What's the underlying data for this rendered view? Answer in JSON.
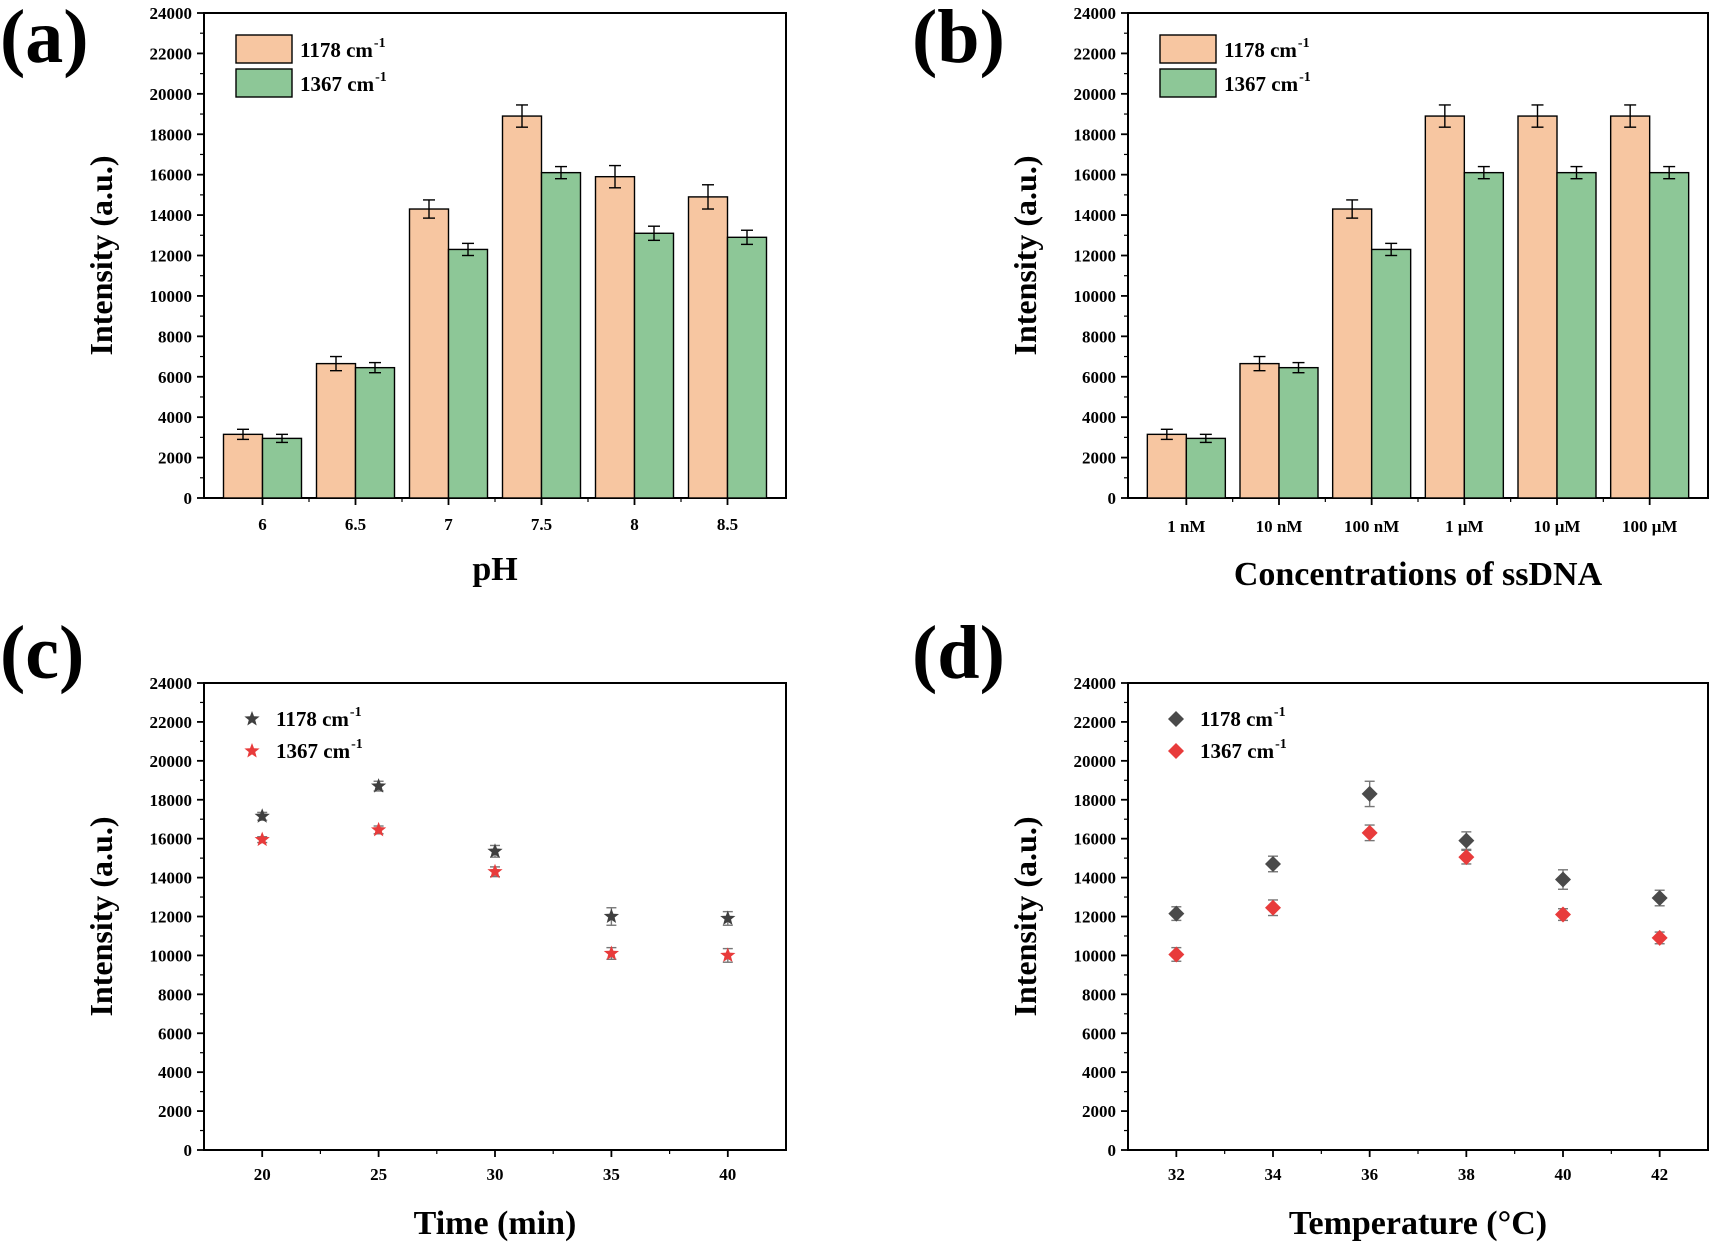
{
  "chart_data": [
    {
      "panel": "(a)",
      "type": "bar",
      "xlabel": "pH",
      "ylabel": "Intensity (a.u.)",
      "ylim": [
        0,
        24000
      ],
      "yticks": [
        0,
        2000,
        4000,
        6000,
        8000,
        10000,
        12000,
        14000,
        16000,
        18000,
        20000,
        22000,
        24000
      ],
      "categories": [
        "6",
        "6.5",
        "7",
        "7.5",
        "8",
        "8.5"
      ],
      "legend_position": "top-left",
      "series": [
        {
          "name": "1178 cm",
          "sup": "-1",
          "color": "#F7C6A1",
          "values": [
            3150,
            6650,
            14300,
            18900,
            15900,
            14900
          ],
          "errors": [
            250,
            350,
            450,
            550,
            550,
            600
          ]
        },
        {
          "name": "1367 cm",
          "sup": "-1",
          "color": "#8DC797",
          "values": [
            2950,
            6450,
            12300,
            16100,
            13100,
            12900
          ],
          "errors": [
            200,
            250,
            300,
            300,
            350,
            350
          ]
        }
      ]
    },
    {
      "panel": "(b)",
      "type": "bar",
      "xlabel": "Concentrations of ssDNA",
      "ylabel": "Intensity (a.u.)",
      "ylim": [
        0,
        24000
      ],
      "yticks": [
        0,
        2000,
        4000,
        6000,
        8000,
        10000,
        12000,
        14000,
        16000,
        18000,
        20000,
        22000,
        24000
      ],
      "categories": [
        "1 nM",
        "10 nM",
        "100 nM",
        "1 μM",
        "10 μM",
        "100 μM"
      ],
      "legend_position": "top-left",
      "series": [
        {
          "name": "1178 cm",
          "sup": "-1",
          "color": "#F7C6A1",
          "values": [
            3150,
            6650,
            14300,
            18900,
            18900,
            18900
          ],
          "errors": [
            250,
            350,
            450,
            550,
            550,
            550
          ]
        },
        {
          "name": "1367 cm",
          "sup": "-1",
          "color": "#8DC797",
          "values": [
            2950,
            6450,
            12300,
            16100,
            16100,
            16100
          ],
          "errors": [
            200,
            250,
            300,
            300,
            300,
            300
          ]
        }
      ]
    },
    {
      "panel": "(c)",
      "type": "scatter",
      "xlabel": "Time (min)",
      "ylabel": "Intensity (a.u.)",
      "xlim": [
        17.5,
        42.5
      ],
      "xticks": [
        20,
        25,
        30,
        35,
        40
      ],
      "ylim": [
        0,
        24000
      ],
      "yticks": [
        0,
        2000,
        4000,
        6000,
        8000,
        10000,
        12000,
        14000,
        16000,
        18000,
        20000,
        22000,
        24000
      ],
      "legend_position": "top-left",
      "marker": "star",
      "series": [
        {
          "name": "1178 cm",
          "sup": "-1",
          "color": "#3F3F3F",
          "x": [
            20,
            25,
            30,
            35,
            40
          ],
          "y": [
            17150,
            18700,
            15350,
            12000,
            11900
          ],
          "errors": [
            200,
            250,
            300,
            450,
            350
          ]
        },
        {
          "name": "1367 cm",
          "sup": "-1",
          "color": "#E83B3B",
          "x": [
            20,
            25,
            30,
            35,
            40
          ],
          "y": [
            15950,
            16450,
            14300,
            10100,
            10000
          ],
          "errors": [
            150,
            200,
            250,
            300,
            350
          ]
        }
      ]
    },
    {
      "panel": "(d)",
      "type": "scatter",
      "xlabel": "Temperature (°C)",
      "ylabel": "Intensity (a.u.)",
      "xlim": [
        31,
        43
      ],
      "xticks": [
        32,
        34,
        36,
        38,
        40,
        42
      ],
      "ylim": [
        0,
        24000
      ],
      "yticks": [
        0,
        2000,
        4000,
        6000,
        8000,
        10000,
        12000,
        14000,
        16000,
        18000,
        20000,
        22000,
        24000
      ],
      "legend_position": "top-left",
      "marker": "diamond",
      "series": [
        {
          "name": "1178 cm",
          "sup": "-1",
          "color": "#4A4A4A",
          "x": [
            32,
            34,
            36,
            38,
            40,
            42
          ],
          "y": [
            12150,
            14700,
            18300,
            15900,
            13900,
            12950
          ],
          "errors": [
            350,
            400,
            650,
            450,
            500,
            400
          ]
        },
        {
          "name": "1367 cm",
          "sup": "-1",
          "color": "#E83B3B",
          "x": [
            32,
            34,
            36,
            38,
            40,
            42
          ],
          "y": [
            10050,
            12450,
            16300,
            15050,
            12100,
            10900
          ],
          "errors": [
            350,
            400,
            400,
            350,
            300,
            300
          ]
        }
      ]
    }
  ]
}
